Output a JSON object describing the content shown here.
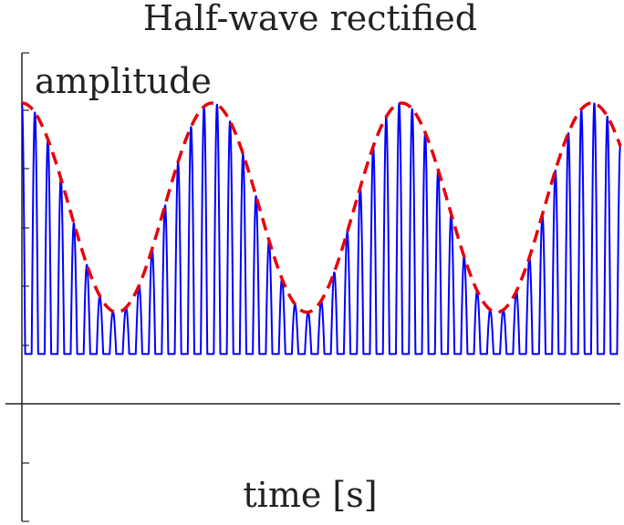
{
  "chart_data": {
    "type": "line",
    "title": "Half-wave rectified",
    "xlabel": "time [s]",
    "ylabel": "amplitude",
    "xlim": [
      0,
      1
    ],
    "ylim": [
      -1,
      1.8
    ],
    "grid": false,
    "series": [
      {
        "style": "solid",
        "color": "#0000ff",
        "description_values": {
          "kind": "half-wave rectified sine carrier modulated by envelope",
          "carrier_cycles": 46,
          "envelope_cycles": 3.15,
          "envelope_min": 0.25,
          "envelope_max": 1.5
        }
      },
      {
        "style": "dashed",
        "color": "#e8000b",
        "description_values": {
          "kind": "envelope",
          "envelope_cycles": 3.15,
          "envelope_min": 0.25,
          "envelope_max": 1.5
        }
      }
    ]
  }
}
